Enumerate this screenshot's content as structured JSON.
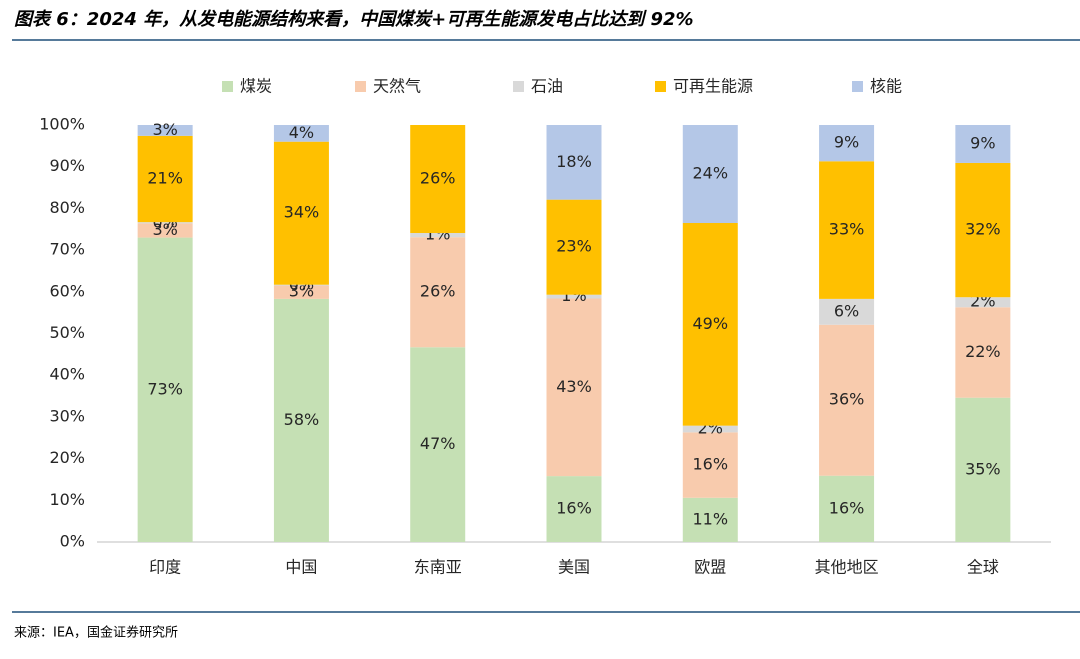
{
  "chart_data": {
    "type": "stacked_bar",
    "title": "图表 6：2024 年，从发电能源结构来看，中国煤炭+可再生能源发电占比达到 92%",
    "source": "来源：IEA，国金证券研究所",
    "categories": [
      "印度",
      "中国",
      "东南亚",
      "美国",
      "欧盟",
      "其他地区",
      "全球"
    ],
    "series": [
      {
        "name": "煤炭",
        "color": "#c5e0b4",
        "values": [
          73.0,
          58.3,
          46.7,
          15.8,
          10.6,
          15.9,
          34.6
        ],
        "value_labels": [
          "73%",
          "58%",
          "47%",
          "16%",
          "11%",
          "16%",
          "35%"
        ]
      },
      {
        "name": "天然气",
        "color": "#f8cbad",
        "values": [
          3.4,
          3.2,
          26.4,
          42.6,
          15.7,
          36.2,
          21.7
        ],
        "value_labels": [
          "3%",
          "3%",
          "26%",
          "43%",
          "16%",
          "36%",
          "22%"
        ]
      },
      {
        "name": "石油",
        "color": "#d9d9d9",
        "values": [
          0.3,
          0.2,
          1.0,
          0.9,
          1.6,
          6.2,
          2.4
        ],
        "value_labels": [
          "0%",
          "0%",
          "1%",
          "1%",
          "2%",
          "6%",
          "2%"
        ]
      },
      {
        "name": "可再生能源",
        "color": "#ffc000",
        "values": [
          20.7,
          34.3,
          25.9,
          22.8,
          48.6,
          33.0,
          32.2
        ],
        "value_labels": [
          "21%",
          "34%",
          "26%",
          "23%",
          "49%",
          "33%",
          "32%"
        ]
      },
      {
        "name": "核能",
        "color": "#b4c7e7",
        "values": [
          2.6,
          4.0,
          0,
          17.9,
          23.5,
          8.7,
          9.1
        ],
        "value_labels": [
          "3%",
          "4%",
          null,
          "18%",
          "24%",
          "9%",
          "9%"
        ]
      }
    ],
    "ylim": [
      0,
      100
    ],
    "yticks": [
      {
        "value": 0,
        "label": "0%"
      },
      {
        "value": 10,
        "label": "10%"
      },
      {
        "value": 20,
        "label": "20%"
      },
      {
        "value": 30,
        "label": "30%"
      },
      {
        "value": 40,
        "label": "40%"
      },
      {
        "value": 50,
        "label": "50%"
      },
      {
        "value": 60,
        "label": "60%"
      },
      {
        "value": 70,
        "label": "70%"
      },
      {
        "value": 80,
        "label": "80%"
      },
      {
        "value": 90,
        "label": "90%"
      },
      {
        "value": 100,
        "label": "100%"
      }
    ]
  }
}
